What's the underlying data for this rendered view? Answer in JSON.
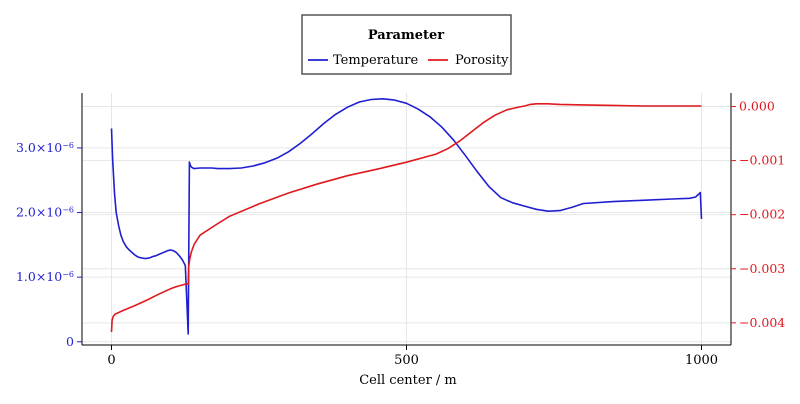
{
  "chart_data": {
    "type": "line",
    "legend": {
      "title": "Parameter",
      "placement": "top-center"
    },
    "xlabel": "Cell center / m",
    "xlim": [
      -50,
      1050
    ],
    "x_ticks": [
      0,
      500,
      1000
    ],
    "x_tick_labels": [
      "0",
      "500",
      "1000"
    ],
    "grid": true,
    "y_left": {
      "color": "#1f1fd1",
      "ylim": [
        -5e-08,
        3.85e-06
      ],
      "ticks": [
        0,
        1e-06,
        2e-06,
        3e-06
      ],
      "tick_labels": [
        "0",
        "1.0×10",
        "2.0×10",
        "3.0×10"
      ],
      "tick_exponent": "−6"
    },
    "y_right": {
      "color": "#e0191e",
      "ylim": [
        -0.00441,
        0.00025
      ],
      "ticks": [
        0.0,
        -0.001,
        -0.002,
        -0.003,
        -0.004
      ],
      "tick_labels": [
        "0.000",
        "−0.001",
        "−0.002",
        "−0.003",
        "−0.004"
      ]
    },
    "series": [
      {
        "name": "Temperature",
        "axis": "left",
        "color": "#1f1fd1",
        "x": [
          0,
          2,
          5,
          8,
          12,
          16,
          20,
          25,
          30,
          35,
          40,
          45,
          50,
          55,
          60,
          65,
          70,
          75,
          80,
          85,
          90,
          95,
          100,
          105,
          110,
          115,
          120,
          125,
          130,
          132,
          134,
          136,
          138,
          140,
          150,
          160,
          170,
          180,
          200,
          220,
          240,
          260,
          280,
          300,
          320,
          340,
          360,
          380,
          400,
          420,
          440,
          460,
          480,
          500,
          520,
          540,
          560,
          580,
          600,
          620,
          640,
          660,
          680,
          700,
          720,
          740,
          760,
          780,
          800,
          850,
          900,
          950,
          980,
          990,
          995,
          998,
          1000
        ],
        "values": [
          3.3e-06,
          2.8e-06,
          2.3e-06,
          2e-06,
          1.8e-06,
          1.65e-06,
          1.55e-06,
          1.47e-06,
          1.42e-06,
          1.38e-06,
          1.34e-06,
          1.31e-06,
          1.3e-06,
          1.29e-06,
          1.29e-06,
          1.3e-06,
          1.32e-06,
          1.33e-06,
          1.35e-06,
          1.37e-06,
          1.39e-06,
          1.41e-06,
          1.42e-06,
          1.41e-06,
          1.38e-06,
          1.33e-06,
          1.27e-06,
          1.18e-06,
          1.2e-07,
          2.78e-06,
          2.72e-06,
          2.7e-06,
          2.69e-06,
          2.68e-06,
          2.69e-06,
          2.69e-06,
          2.69e-06,
          2.68e-06,
          2.68e-06,
          2.69e-06,
          2.72e-06,
          2.77e-06,
          2.84e-06,
          2.94e-06,
          3.07e-06,
          3.22e-06,
          3.38e-06,
          3.52e-06,
          3.63e-06,
          3.71e-06,
          3.75e-06,
          3.76e-06,
          3.74e-06,
          3.69e-06,
          3.6e-06,
          3.48e-06,
          3.32e-06,
          3.12e-06,
          2.88e-06,
          2.63e-06,
          2.4e-06,
          2.23e-06,
          2.15e-06,
          2.1e-06,
          2.05e-06,
          2.02e-06,
          2.03e-06,
          2.08e-06,
          2.14e-06,
          2.17e-06,
          2.19e-06,
          2.21e-06,
          2.22e-06,
          2.24e-06,
          2.28e-06,
          2.31e-06,
          1.9e-06
        ]
      },
      {
        "name": "Porosity",
        "axis": "right",
        "color": "#e0191e",
        "x": [
          0,
          1,
          3,
          6,
          10,
          20,
          40,
          60,
          80,
          100,
          110,
          120,
          127,
          128,
          129,
          130,
          131,
          133,
          135,
          140,
          150,
          175,
          200,
          250,
          300,
          350,
          400,
          450,
          500,
          550,
          570,
          590,
          610,
          630,
          650,
          670,
          690,
          700,
          710,
          720,
          730,
          740,
          760,
          800,
          850,
          900,
          950,
          1000
        ],
        "values": [
          -0.00417,
          -0.00395,
          -0.00388,
          -0.00384,
          -0.00382,
          -0.00377,
          -0.00368,
          -0.00358,
          -0.00347,
          -0.00337,
          -0.00333,
          -0.0033,
          -0.00328,
          -0.00328,
          -0.00328,
          -0.00328,
          -0.00295,
          -0.0028,
          -0.0027,
          -0.00255,
          -0.00238,
          -0.0022,
          -0.00203,
          -0.0018,
          -0.0016,
          -0.00143,
          -0.00128,
          -0.00116,
          -0.00103,
          -0.00088,
          -0.00078,
          -0.00064,
          -0.00047,
          -0.0003,
          -0.00016,
          -6e-05,
          -1e-05,
          1e-05,
          4e-05,
          5e-05,
          5e-05,
          5e-05,
          4e-05,
          3e-05,
          2e-05,
          1e-05,
          1e-05,
          1e-05
        ]
      }
    ]
  }
}
